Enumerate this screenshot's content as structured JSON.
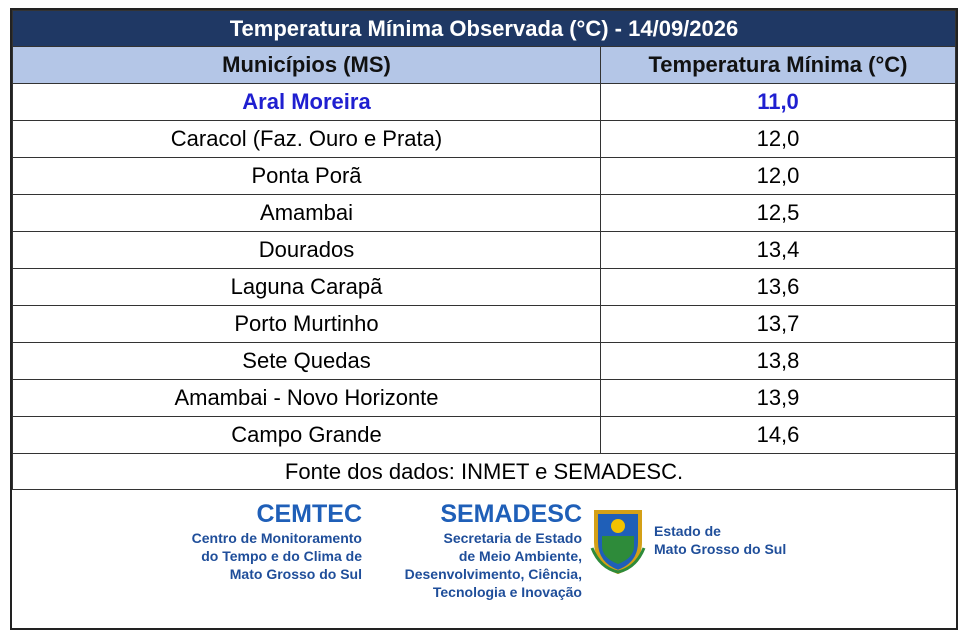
{
  "header": {
    "title": "Temperatura Mínima Observada (°C) - 14/09/2026"
  },
  "table": {
    "columns": [
      "Municípios (MS)",
      "Temperatura Mínima (°C)"
    ],
    "rows": [
      [
        "Aral Moreira",
        "11,0"
      ],
      [
        "Caracol (Faz. Ouro e Prata)",
        "12,0"
      ],
      [
        "Ponta Porã",
        "12,0"
      ],
      [
        "Amambai",
        "12,5"
      ],
      [
        "Dourados",
        "13,4"
      ],
      [
        "Laguna Carapã",
        "13,6"
      ],
      [
        "Porto Murtinho",
        "13,7"
      ],
      [
        "Sete Quedas",
        "13,8"
      ],
      [
        "Amambai - Novo Horizonte",
        "13,9"
      ],
      [
        "Campo Grande",
        "14,6"
      ]
    ]
  },
  "source": "Fonte dos dados: INMET e SEMADESC.",
  "logos": {
    "cemtec": {
      "name": "CEMTEC",
      "lines": [
        "Centro de Monitoramento",
        "do Tempo e do Clima de",
        "Mato Grosso do Sul"
      ]
    },
    "semadesc": {
      "name": "SEMADESC",
      "lines": [
        "Secretaria de Estado",
        "de Meio Ambiente,",
        "Desenvolvimento, Ciência,",
        "Tecnologia e Inovação"
      ]
    },
    "estado": {
      "lines": [
        "Estado de",
        "Mato Grosso do Sul"
      ]
    }
  }
}
